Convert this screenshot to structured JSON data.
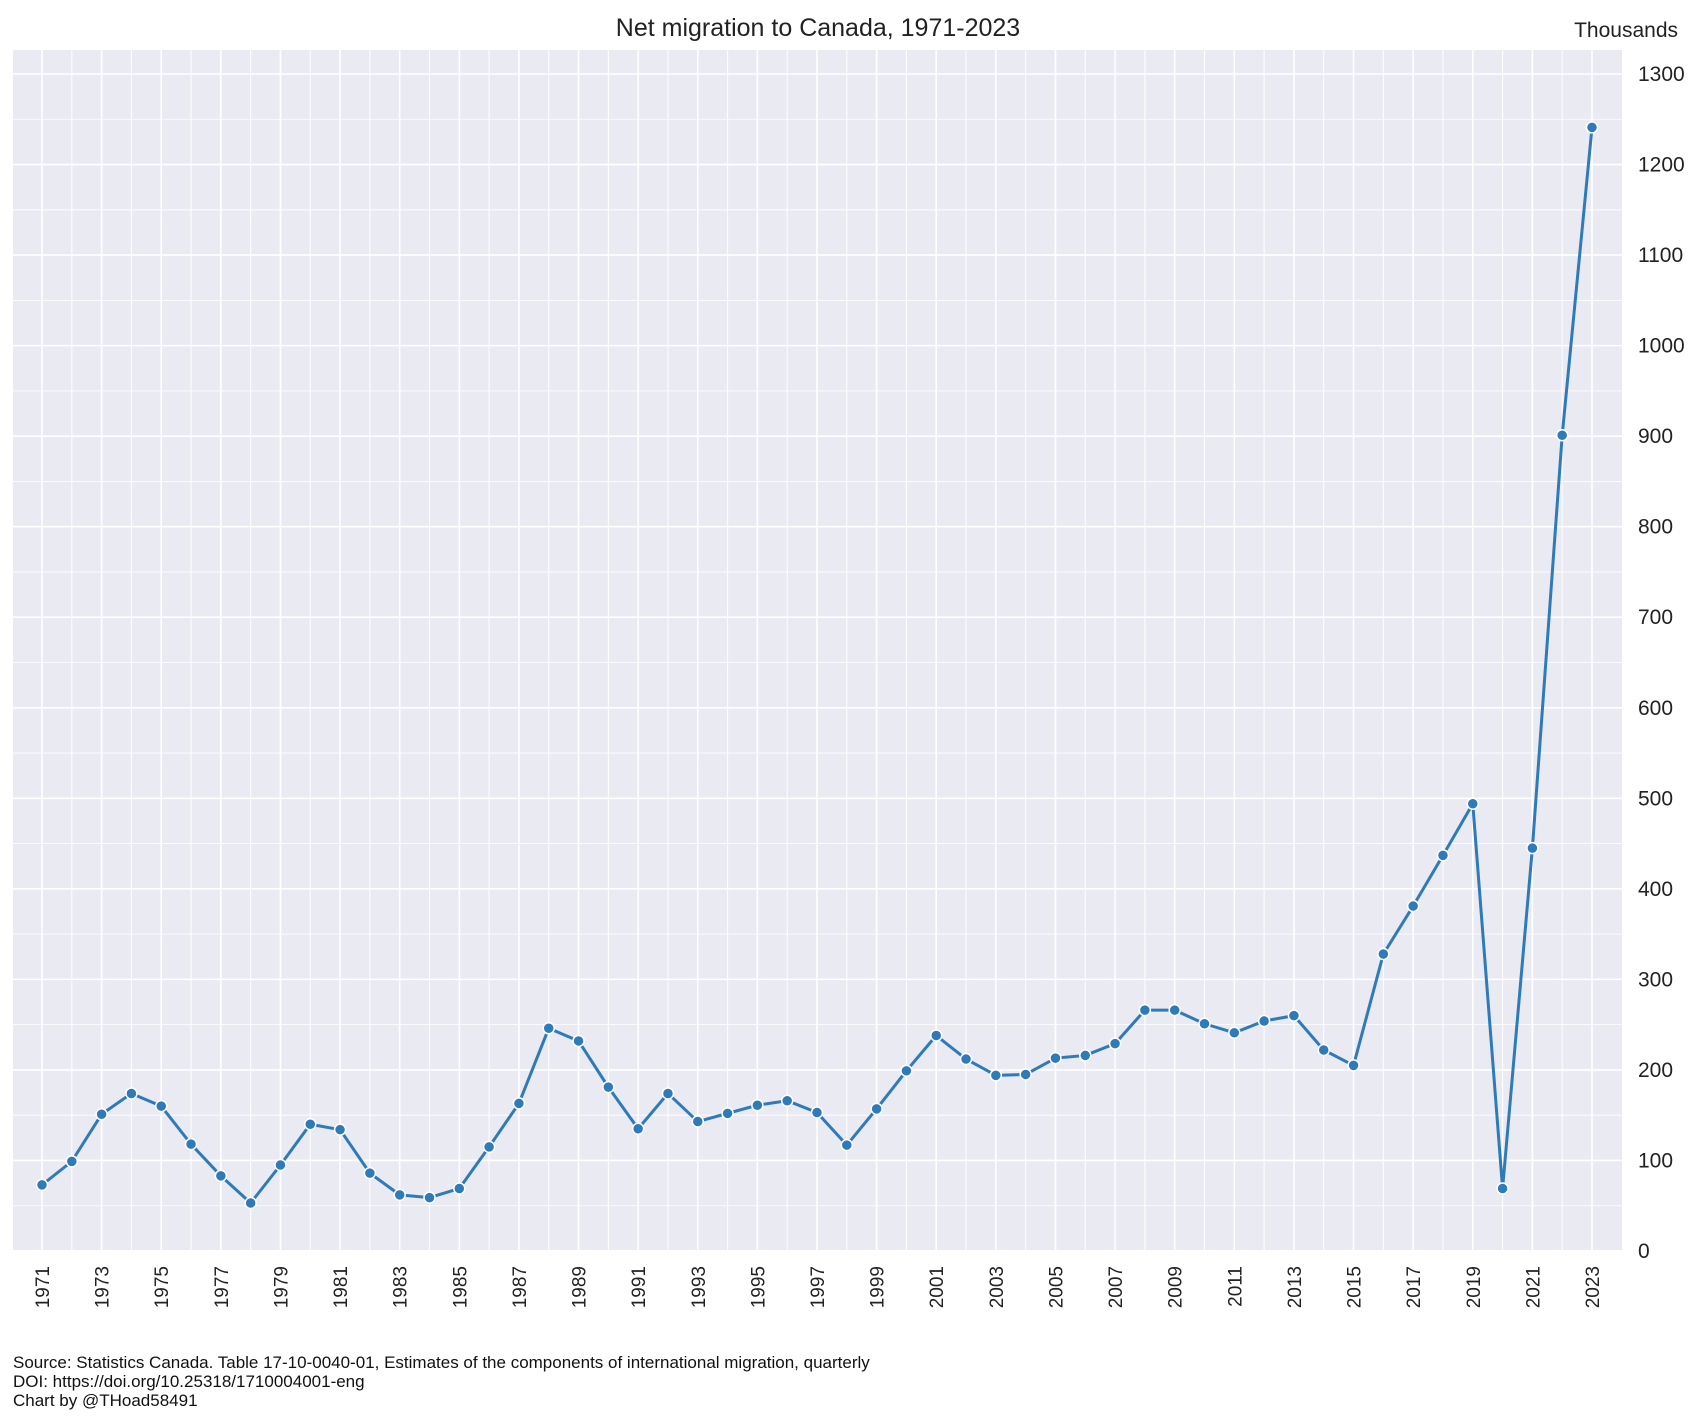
{
  "chart_data": {
    "type": "line",
    "title": "Net migration to Canada, 1971-2023",
    "unit_label": "Thousands",
    "xlabel": "",
    "ylabel": "",
    "ylim": [
      0,
      1300
    ],
    "yticks": [
      0,
      100,
      200,
      300,
      400,
      500,
      600,
      700,
      800,
      900,
      1000,
      1100,
      1200,
      1300
    ],
    "xlim": [
      1971,
      2023
    ],
    "xtick_labels": [
      "1971",
      "1973",
      "1975",
      "1977",
      "1979",
      "1981",
      "1983",
      "1985",
      "1987",
      "1989",
      "1991",
      "1993",
      "1995",
      "1997",
      "1999",
      "2001",
      "2003",
      "2005",
      "2007",
      "2009",
      "2011",
      "2013",
      "2015",
      "2017",
      "2019",
      "2021",
      "2023"
    ],
    "grid": true,
    "y_axis_side": "right",
    "marker": "circle",
    "line_color": "#2f7ab8",
    "background_color": "#eaeaf2",
    "series": [
      {
        "name": "",
        "x": [
          1971,
          1972,
          1973,
          1974,
          1975,
          1976,
          1977,
          1978,
          1979,
          1980,
          1981,
          1982,
          1983,
          1984,
          1985,
          1986,
          1987,
          1988,
          1989,
          1990,
          1991,
          1992,
          1993,
          1994,
          1995,
          1996,
          1997,
          1998,
          1999,
          2000,
          2001,
          2002,
          2003,
          2004,
          2005,
          2006,
          2007,
          2008,
          2009,
          2010,
          2011,
          2012,
          2013,
          2014,
          2015,
          2016,
          2017,
          2018,
          2019,
          2020,
          2021,
          2022,
          2023
        ],
        "values": [
          73,
          99,
          151,
          174,
          160,
          118,
          83,
          53,
          95,
          140,
          134,
          86,
          62,
          59,
          69,
          115,
          163,
          246,
          232,
          181,
          135,
          174,
          143,
          152,
          161,
          166,
          153,
          117,
          157,
          199,
          238,
          212,
          194,
          195,
          213,
          216,
          229,
          266,
          266,
          251,
          241,
          254,
          260,
          222,
          205,
          328,
          381,
          437,
          494,
          69,
          445,
          901,
          1241
        ]
      }
    ]
  },
  "source_lines": [
    "Source: Statistics Canada. Table 17-10-0040-01, Estimates of the components of international migration, quarterly",
    "DOI: https://doi.org/10.25318/1710004001-eng",
    "Chart by @THoad58491"
  ]
}
